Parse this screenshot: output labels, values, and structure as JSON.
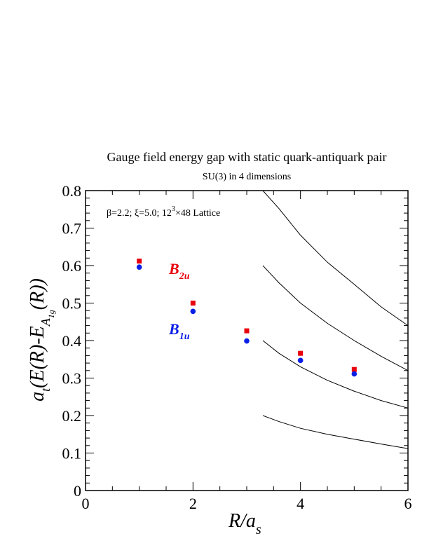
{
  "chart_data": {
    "type": "scatter",
    "title": "Gauge field energy gap with static quark-antiquark pair",
    "subtitle": "SU(3) in 4 dimensions",
    "annotation": {
      "params": "β=2.2;  ξ=5.0;  12",
      "sup": "3",
      "lattice": "×48 Lattice"
    },
    "xlabel": {
      "main": "R/a",
      "sub": "s"
    },
    "ylabel": {
      "pre": "a",
      "sub_t": "t",
      "mid": "(E(R)-E",
      "sub_A": "A",
      "sub_1g": "1g",
      "post": "(R))"
    },
    "xlim": [
      0,
      6
    ],
    "ylim": [
      0,
      0.8
    ],
    "x_ticks": [
      "0",
      "2",
      "4",
      "6"
    ],
    "y_ticks": [
      "0",
      "0.1",
      "0.2",
      "0.3",
      "0.4",
      "0.5",
      "0.6",
      "0.7",
      "0.8"
    ],
    "grid": false,
    "series": [
      {
        "name": "B2u",
        "label_main": "B",
        "label_sub": "2u",
        "color": "#e8000b",
        "marker": "square",
        "x": [
          1,
          2,
          3,
          4,
          5
        ],
        "y": [
          0.612,
          0.5,
          0.426,
          0.366,
          0.323
        ]
      },
      {
        "name": "B1u",
        "label_main": "B",
        "label_sub": "1u",
        "color": "#0a1fe6",
        "marker": "circle",
        "x": [
          1,
          2,
          3,
          4,
          5
        ],
        "y": [
          0.596,
          0.478,
          0.399,
          0.347,
          0.311
        ]
      }
    ],
    "curves": [
      {
        "x": [
          3.3,
          3.6,
          4.0,
          4.5,
          5.0,
          5.5,
          6.0
        ],
        "y": [
          0.815,
          0.752,
          0.681,
          0.609,
          0.55,
          0.49,
          0.44
        ]
      },
      {
        "x": [
          3.3,
          3.6,
          4.0,
          4.5,
          5.0,
          5.5,
          6.0
        ],
        "y": [
          0.6,
          0.554,
          0.5,
          0.446,
          0.4,
          0.358,
          0.32
        ]
      },
      {
        "x": [
          3.3,
          3.6,
          4.0,
          4.5,
          5.0,
          5.5,
          6.0
        ],
        "y": [
          0.4,
          0.366,
          0.33,
          0.294,
          0.265,
          0.24,
          0.22
        ]
      },
      {
        "x": [
          3.3,
          3.6,
          4.0,
          4.5,
          5.0,
          5.5,
          6.0
        ],
        "y": [
          0.2,
          0.184,
          0.166,
          0.15,
          0.137,
          0.124,
          0.112
        ]
      }
    ]
  }
}
